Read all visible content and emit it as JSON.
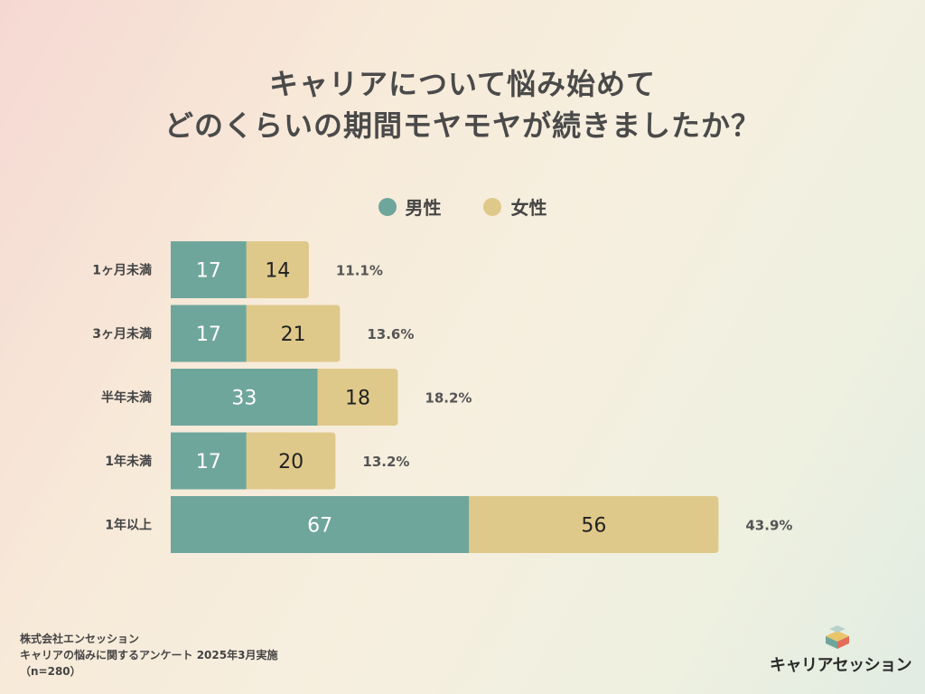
{
  "title": {
    "line1": "キャリアについて悩み始めて",
    "line2": "どのくらいの期間モヤモヤが続きましたか？"
  },
  "legend": {
    "male": "男性",
    "female": "女性"
  },
  "colors": {
    "male": "#6fa69c",
    "female": "#dfc98a",
    "text": "#4a4a4a"
  },
  "chart_data": {
    "type": "bar",
    "orientation": "horizontal",
    "stacked": true,
    "categories": [
      "1ヶ月未満",
      "3ヶ月未満",
      "半年未満",
      "1年未満",
      "1年以上"
    ],
    "series": [
      {
        "name": "男性",
        "values": [
          17,
          17,
          33,
          17,
          67
        ]
      },
      {
        "name": "女性",
        "values": [
          14,
          21,
          18,
          20,
          56
        ]
      }
    ],
    "percentages": [
      "11.1%",
      "13.6%",
      "18.2%",
      "13.2%",
      "43.9%"
    ],
    "legend_position": "top",
    "grid": false
  },
  "footer": {
    "line1": "株式会社エンセッション",
    "line2": "キャリアの悩みに関するアンケート 2025年3月実施",
    "line3": "（n=280）"
  },
  "logo": {
    "text": "キャリアセッション",
    "icon": "stacked-blocks-logo-icon"
  }
}
